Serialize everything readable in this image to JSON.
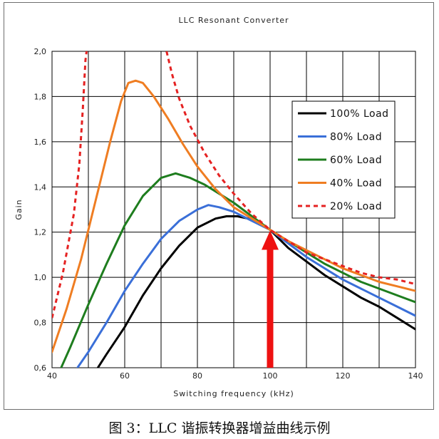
{
  "chart_data": {
    "type": "line",
    "title": "LLC Resonant Converter",
    "xlabel": "Switching frequency (kHz)",
    "ylabel": "Gain",
    "xlim": [
      40,
      140
    ],
    "ylim": [
      0.6,
      2.0
    ],
    "xticks": [
      40,
      60,
      80,
      100,
      120,
      140
    ],
    "yticks": [
      "0,6",
      "0,8",
      "1,0",
      "1,2",
      "1,4",
      "1,6",
      "1,8",
      "2,0"
    ],
    "grid": true,
    "legend_position": "right",
    "series": [
      {
        "name": "100% Load",
        "color": "#000000",
        "style": "solid",
        "points": [
          [
            52.6,
            0.6
          ],
          [
            55,
            0.66
          ],
          [
            60,
            0.78
          ],
          [
            65,
            0.92
          ],
          [
            70,
            1.04
          ],
          [
            75,
            1.14
          ],
          [
            80,
            1.22
          ],
          [
            85,
            1.26
          ],
          [
            88,
            1.27
          ],
          [
            91,
            1.27
          ],
          [
            94,
            1.26
          ],
          [
            97,
            1.24
          ],
          [
            100,
            1.21
          ],
          [
            105,
            1.13
          ],
          [
            110,
            1.07
          ],
          [
            115,
            1.01
          ],
          [
            120,
            0.96
          ],
          [
            125,
            0.91
          ],
          [
            130,
            0.87
          ],
          [
            135,
            0.82
          ],
          [
            140,
            0.77
          ]
        ]
      },
      {
        "name": "80% Load",
        "color": "#3a6fd8",
        "style": "solid",
        "points": [
          [
            47,
            0.6
          ],
          [
            50,
            0.67
          ],
          [
            55,
            0.8
          ],
          [
            60,
            0.94
          ],
          [
            65,
            1.06
          ],
          [
            70,
            1.17
          ],
          [
            75,
            1.25
          ],
          [
            80,
            1.3
          ],
          [
            83,
            1.32
          ],
          [
            86,
            1.31
          ],
          [
            90,
            1.29
          ],
          [
            95,
            1.25
          ],
          [
            100,
            1.21
          ],
          [
            105,
            1.15
          ],
          [
            110,
            1.09
          ],
          [
            115,
            1.04
          ],
          [
            120,
            0.99
          ],
          [
            125,
            0.95
          ],
          [
            130,
            0.91
          ],
          [
            135,
            0.87
          ],
          [
            140,
            0.83
          ]
        ]
      },
      {
        "name": "60% Load",
        "color": "#1e7d1e",
        "style": "solid",
        "points": [
          [
            42.5,
            0.6
          ],
          [
            45,
            0.69
          ],
          [
            50,
            0.88
          ],
          [
            55,
            1.06
          ],
          [
            60,
            1.23
          ],
          [
            65,
            1.36
          ],
          [
            70,
            1.44
          ],
          [
            74,
            1.46
          ],
          [
            78,
            1.44
          ],
          [
            82,
            1.41
          ],
          [
            86,
            1.37
          ],
          [
            90,
            1.33
          ],
          [
            95,
            1.27
          ],
          [
            100,
            1.21
          ],
          [
            105,
            1.16
          ],
          [
            110,
            1.11
          ],
          [
            115,
            1.06
          ],
          [
            120,
            1.02
          ],
          [
            125,
            0.98
          ],
          [
            130,
            0.95
          ],
          [
            135,
            0.92
          ],
          [
            140,
            0.89
          ]
        ]
      },
      {
        "name": "40% Load",
        "color": "#ef7d22",
        "style": "solid",
        "points": [
          [
            40,
            0.67
          ],
          [
            44,
            0.86
          ],
          [
            48,
            1.08
          ],
          [
            52,
            1.34
          ],
          [
            56,
            1.6
          ],
          [
            59,
            1.78
          ],
          [
            61,
            1.86
          ],
          [
            63,
            1.87
          ],
          [
            65,
            1.86
          ],
          [
            68,
            1.8
          ],
          [
            72,
            1.7
          ],
          [
            76,
            1.59
          ],
          [
            80,
            1.49
          ],
          [
            85,
            1.39
          ],
          [
            90,
            1.31
          ],
          [
            95,
            1.26
          ],
          [
            100,
            1.21
          ],
          [
            105,
            1.16
          ],
          [
            110,
            1.12
          ],
          [
            115,
            1.08
          ],
          [
            120,
            1.04
          ],
          [
            125,
            1.01
          ],
          [
            130,
            0.98
          ],
          [
            135,
            0.96
          ],
          [
            140,
            0.94
          ]
        ]
      },
      {
        "name": "20% Load",
        "color": "#e52222",
        "style": "dashed",
        "points": [
          [
            40,
            0.82
          ],
          [
            43,
            1.02
          ],
          [
            46,
            1.28
          ],
          [
            47.5,
            1.5
          ],
          [
            48.5,
            1.75
          ],
          [
            49.2,
            1.96
          ],
          [
            49.5,
            2.0
          ]
        ],
        "points2": [
          [
            71.5,
            2.0
          ],
          [
            73,
            1.9
          ],
          [
            75,
            1.79
          ],
          [
            78,
            1.67
          ],
          [
            82,
            1.55
          ],
          [
            86,
            1.45
          ],
          [
            90,
            1.37
          ],
          [
            95,
            1.28
          ],
          [
            100,
            1.21
          ],
          [
            105,
            1.16
          ],
          [
            110,
            1.11
          ],
          [
            115,
            1.08
          ],
          [
            120,
            1.05
          ],
          [
            125,
            1.02
          ],
          [
            130,
            1.0
          ],
          [
            135,
            0.99
          ],
          [
            140,
            0.97
          ]
        ]
      }
    ],
    "annotation": {
      "type": "arrow",
      "color": "#ee1111",
      "x": 100,
      "y_from": 0.6,
      "y_to": 1.21
    }
  },
  "caption": "图 3：LLC 谐振转换器增益曲线示例"
}
